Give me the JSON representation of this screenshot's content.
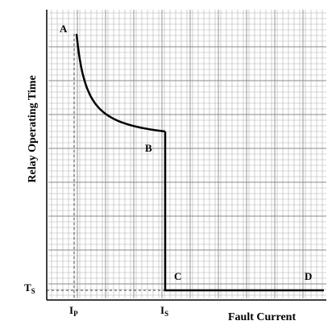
{
  "axes": {
    "ylabel": "Relay Operating Time",
    "xlabel": "Fault Current"
  },
  "points": {
    "A": "A",
    "B": "B",
    "C": "C",
    "D": "D"
  },
  "ticks": {
    "x": [
      {
        "base": "I",
        "sub": "P"
      },
      {
        "base": "I",
        "sub": "S"
      }
    ],
    "y": [
      {
        "base": "T",
        "sub": "S"
      }
    ]
  },
  "colors": {
    "curve": "#000000",
    "grid": "#9a9a9a",
    "axis": "#000000",
    "dashed": "#444444"
  }
}
